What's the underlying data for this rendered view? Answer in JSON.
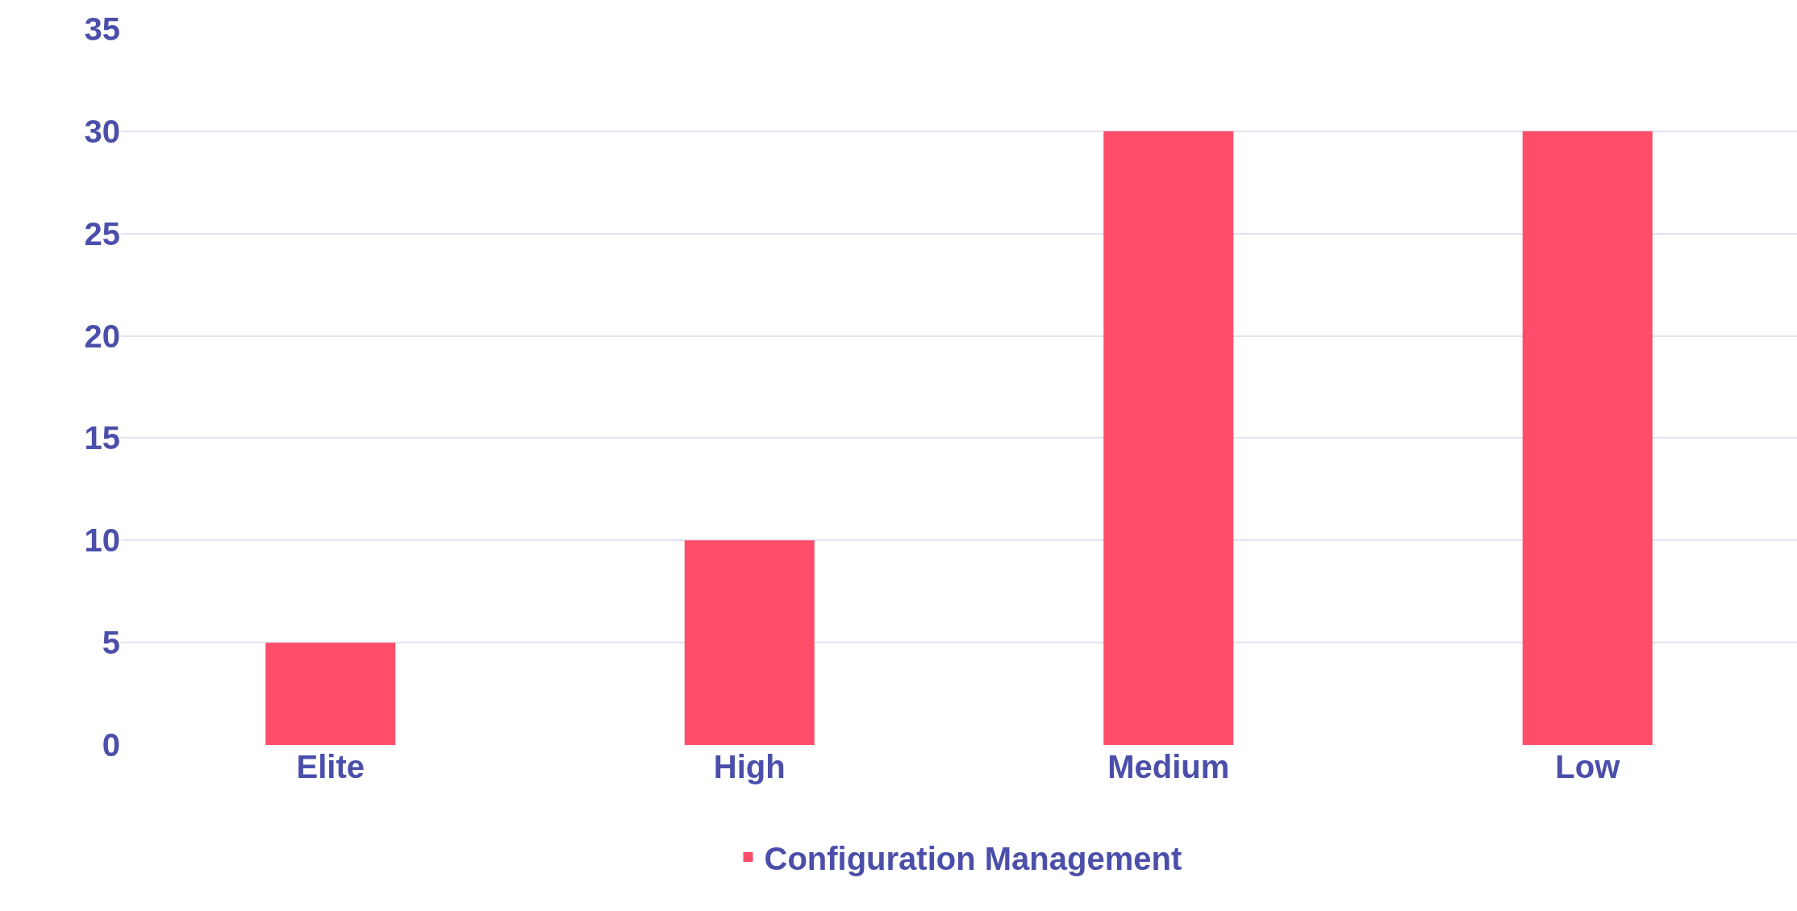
{
  "chart_data": {
    "type": "bar",
    "categories": [
      "Elite",
      "High",
      "Medium",
      "Low"
    ],
    "series": [
      {
        "name": "Configuration Management",
        "color": "#ff4d6a",
        "values": [
          5,
          10,
          30,
          30
        ]
      }
    ],
    "ylim": [
      0,
      35
    ],
    "yticks": [
      0,
      5,
      10,
      15,
      20,
      25,
      30,
      35
    ],
    "grid": "y",
    "legend": "bottom"
  }
}
